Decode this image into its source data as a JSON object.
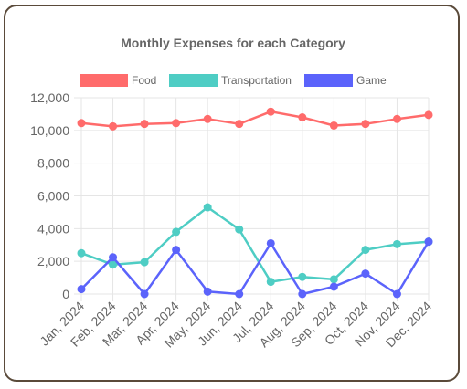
{
  "chart_data": {
    "type": "line",
    "title": "Monthly Expenses for each Category",
    "categories": [
      "Jan, 2024",
      "Feb, 2024",
      "Mar, 2024",
      "Apr, 2024",
      "May, 2024",
      "Jun, 2024",
      "Jul, 2024",
      "Aug, 2024",
      "Sep, 2024",
      "Oct, 2024",
      "Nov, 2024",
      "Dec, 2024"
    ],
    "yticks": [
      "0",
      "2,000",
      "4,000",
      "6,000",
      "8,000",
      "10,000",
      "12,000"
    ],
    "ylim": [
      0,
      12000
    ],
    "grid": true,
    "legend_position": "top",
    "series": [
      {
        "name": "Food",
        "color": "#ff6b6b",
        "values": [
          10450,
          10250,
          10400,
          10450,
          10700,
          10400,
          11150,
          10800,
          10300,
          10400,
          10700,
          10950
        ]
      },
      {
        "name": "Transportation",
        "color": "#4ecdc4",
        "values": [
          2500,
          1800,
          1950,
          3800,
          5300,
          3950,
          750,
          1050,
          900,
          2700,
          3050,
          3200
        ]
      },
      {
        "name": "Game",
        "color": "#5b63fb",
        "values": [
          300,
          2250,
          0,
          2700,
          150,
          0,
          3100,
          0,
          450,
          1250,
          0,
          3200
        ]
      }
    ]
  }
}
